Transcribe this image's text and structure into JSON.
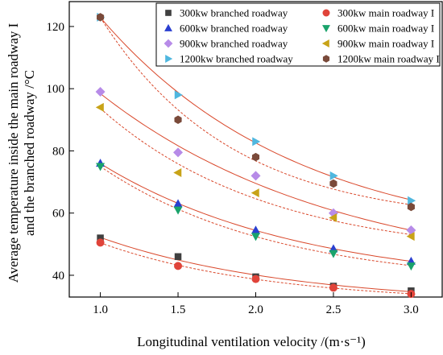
{
  "chart_data": {
    "type": "scatter",
    "title": "",
    "xlabel": "Longitudinal ventilation velocity /(m·s⁻¹)",
    "ylabel_lines": [
      "Average temperature inside the main roadway I",
      "and the branched roadway /°C"
    ],
    "xlim": [
      0.8,
      3.2
    ],
    "ylim": [
      33,
      128
    ],
    "x_ticks": [
      "1.0",
      "1.5",
      "2.0",
      "2.5",
      "3.0"
    ],
    "y_ticks": [
      "40",
      "60",
      "80",
      "100",
      "120"
    ],
    "x": [
      1.0,
      1.5,
      2.0,
      2.5,
      3.0
    ],
    "legend_position": "top-right",
    "fit_color": "#d9482b",
    "series": [
      {
        "name": "300kw branched roadway",
        "color": "#404040",
        "marker": "square",
        "fit": "solid",
        "values": [
          52.0,
          46.0,
          39.5,
          36.5,
          35.0
        ]
      },
      {
        "name": "300kw main roadway I",
        "color": "#e0443a",
        "marker": "circle",
        "fit": "dashed",
        "values": [
          50.5,
          43.0,
          38.8,
          36.0,
          34.0
        ]
      },
      {
        "name": "600kw branched roadway",
        "color": "#2a3fd0",
        "marker": "triangle-up",
        "fit": "solid",
        "values": [
          76.0,
          63.0,
          54.5,
          48.5,
          44.5
        ]
      },
      {
        "name": "600kw main roadway I",
        "color": "#1aa36b",
        "marker": "triangle-down",
        "fit": "dashed",
        "values": [
          75.0,
          61.0,
          52.5,
          47.0,
          43.0
        ]
      },
      {
        "name": "900kw branched roadway",
        "color": "#b78be8",
        "marker": "diamond",
        "fit": "solid",
        "values": [
          99.0,
          79.5,
          72.0,
          60.0,
          54.5
        ]
      },
      {
        "name": "900kw main roadway I",
        "color": "#c8a318",
        "marker": "triangle-left",
        "fit": "dashed",
        "values": [
          94.0,
          73.0,
          66.5,
          58.5,
          52.5
        ]
      },
      {
        "name": "1200kw branched roadway",
        "color": "#4fb7df",
        "marker": "triangle-right",
        "fit": "solid",
        "values": [
          123.0,
          98.0,
          83.0,
          72.0,
          64.0
        ]
      },
      {
        "name": "1200kw main roadway I",
        "color": "#7a4a3a",
        "marker": "hexagon",
        "fit": "dashed",
        "values": [
          123.0,
          90.0,
          78.0,
          69.5,
          62.0
        ]
      }
    ]
  }
}
